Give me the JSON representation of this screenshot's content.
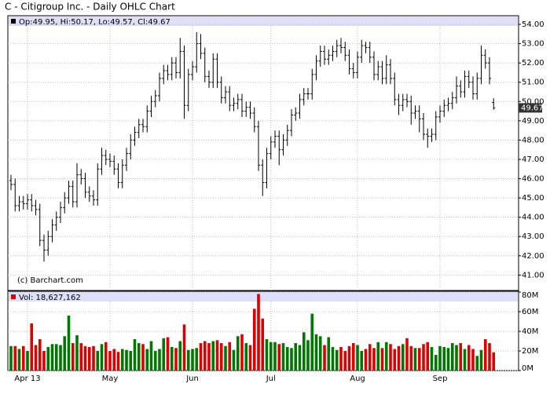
{
  "chart_data": {
    "type": "ohlc",
    "title": "C - Citigroup Inc. - Daily OHLC Chart",
    "price_legend": "Op:49.95, Hi:50.17, Lo:49.57, Cl:49.67",
    "volume_legend": "Vol: 18,627,162",
    "last_price_label": "49.67",
    "copyright": "(c) Barchart.com",
    "categories": [
      null,
      null,
      null,
      null,
      "Apr 13",
      null,
      null,
      null,
      null,
      null,
      null,
      null,
      null,
      null,
      null,
      null,
      null,
      null,
      null,
      null,
      null,
      null,
      null,
      null,
      "May",
      null,
      null,
      null,
      null,
      null,
      null,
      null,
      null,
      null,
      null,
      null,
      null,
      null,
      null,
      null,
      null,
      null,
      null,
      null,
      "Jun",
      null,
      null,
      null,
      null,
      null,
      null,
      null,
      null,
      null,
      null,
      null,
      null,
      null,
      null,
      null,
      null,
      null,
      null,
      "Jul",
      null,
      null,
      null,
      null,
      null,
      null,
      null,
      null,
      null,
      null,
      null,
      null,
      null,
      null,
      null,
      null,
      null,
      null,
      null,
      null,
      "Aug",
      null,
      null,
      null,
      null,
      null,
      null,
      null,
      null,
      null,
      null,
      null,
      null,
      null,
      null,
      null,
      null,
      null,
      null,
      null,
      "Sep",
      null,
      null,
      null,
      null,
      null,
      null,
      null,
      null,
      null,
      null,
      null,
      null,
      null
    ],
    "open": [
      45.9,
      45.7,
      44.6,
      44.8,
      44.7,
      44.9,
      44.6,
      44.4,
      42.8,
      42.3,
      43.0,
      43.6,
      44.0,
      44.5,
      45.0,
      45.6,
      44.8,
      46.2,
      46.0,
      45.3,
      45.1,
      44.9,
      46.5,
      47.2,
      47.0,
      46.9,
      46.5,
      45.8,
      46.7,
      47.3,
      48.0,
      48.4,
      48.8,
      48.7,
      49.5,
      50.0,
      50.3,
      51.2,
      51.6,
      51.4,
      52.0,
      51.5,
      52.6,
      49.8,
      51.4,
      51.8,
      53.0,
      52.5,
      51.3,
      51.0,
      52.2,
      51.0,
      50.2,
      50.5,
      49.8,
      49.9,
      50.1,
      49.5,
      49.7,
      49.4,
      48.7,
      46.7,
      45.8,
      47.3,
      47.9,
      48.2,
      47.5,
      48.0,
      48.5,
      49.3,
      49.4,
      50.1,
      50.4,
      50.4,
      51.4,
      52.1,
      52.6,
      52.2,
      52.4,
      52.6,
      52.9,
      52.8,
      52.4,
      51.7,
      51.5,
      52.3,
      52.9,
      52.8,
      52.3,
      51.4,
      51.8,
      51.2,
      51.9,
      51.2,
      50.1,
      49.8,
      50.1,
      50.0,
      49.4,
      49.5,
      49.1,
      48.3,
      48.2,
      48.3,
      49.2,
      49.5,
      49.8,
      49.9,
      50.2,
      50.8,
      50.5,
      51.3,
      51.0,
      50.4,
      51.2,
      52.4,
      52.0,
      49.95
    ],
    "high": [
      46.2,
      46.0,
      45.1,
      45.1,
      45.2,
      45.2,
      44.9,
      44.7,
      43.1,
      43.3,
      43.9,
      44.3,
      44.8,
      45.3,
      45.9,
      45.9,
      46.8,
      46.5,
      46.3,
      45.6,
      45.4,
      46.8,
      47.6,
      47.5,
      47.3,
      47.2,
      46.8,
      47.0,
      47.6,
      48.3,
      48.7,
      49.1,
      49.1,
      49.8,
      50.3,
      50.6,
      51.5,
      51.9,
      51.9,
      52.3,
      52.3,
      53.3,
      52.9,
      51.7,
      52.1,
      53.6,
      53.5,
      52.8,
      51.6,
      52.5,
      52.5,
      51.3,
      50.8,
      50.8,
      50.2,
      50.4,
      50.4,
      50.0,
      50.0,
      49.7,
      49.0,
      47.0,
      47.6,
      48.2,
      48.5,
      48.5,
      48.3,
      48.8,
      49.6,
      49.7,
      50.4,
      50.7,
      50.7,
      51.7,
      52.4,
      52.9,
      52.9,
      52.7,
      52.9,
      53.2,
      53.3,
      53.1,
      52.7,
      52.0,
      52.6,
      53.2,
      53.1,
      53.1,
      52.6,
      52.1,
      52.1,
      52.4,
      52.2,
      51.5,
      50.4,
      50.4,
      50.4,
      50.3,
      49.8,
      49.8,
      49.4,
      48.6,
      48.6,
      49.5,
      49.8,
      50.1,
      50.2,
      50.5,
      51.3,
      51.1,
      51.6,
      51.6,
      51.3,
      51.5,
      52.9,
      52.7,
      52.3,
      50.17
    ],
    "low": [
      45.4,
      44.3,
      44.3,
      44.4,
      44.4,
      44.3,
      44.1,
      42.5,
      41.7,
      42.0,
      42.7,
      43.3,
      43.7,
      44.2,
      44.7,
      44.5,
      44.5,
      45.7,
      45.0,
      44.8,
      44.6,
      44.6,
      46.2,
      46.7,
      46.6,
      46.2,
      45.5,
      45.5,
      46.4,
      47.0,
      47.7,
      48.1,
      48.4,
      48.4,
      49.2,
      49.7,
      50.0,
      50.9,
      51.1,
      51.1,
      51.2,
      51.2,
      49.1,
      49.5,
      51.1,
      51.5,
      52.2,
      51.0,
      50.7,
      50.7,
      50.7,
      49.9,
      49.9,
      49.5,
      49.5,
      49.6,
      49.2,
      49.2,
      49.1,
      48.4,
      46.4,
      45.1,
      45.5,
      47.0,
      47.6,
      46.7,
      47.2,
      47.7,
      48.2,
      49.0,
      49.1,
      49.8,
      50.1,
      50.1,
      51.1,
      51.8,
      51.9,
      51.9,
      52.1,
      52.3,
      52.5,
      52.1,
      51.4,
      51.2,
      51.2,
      52.0,
      52.5,
      52.0,
      51.1,
      51.1,
      50.9,
      50.9,
      50.9,
      49.8,
      49.3,
      49.5,
      49.7,
      48.8,
      49.1,
      48.4,
      48.0,
      47.6,
      47.9,
      48.0,
      48.9,
      49.2,
      49.5,
      49.6,
      49.9,
      50.2,
      50.2,
      50.7,
      50.1,
      50.1,
      50.9,
      51.7,
      50.9,
      49.57
    ],
    "close": [
      45.7,
      44.6,
      44.8,
      44.7,
      44.9,
      44.6,
      44.4,
      42.8,
      42.3,
      43.0,
      43.6,
      44.0,
      44.5,
      45.0,
      45.6,
      44.8,
      46.2,
      46.0,
      45.3,
      45.1,
      44.9,
      46.5,
      47.2,
      47.0,
      46.9,
      46.5,
      45.8,
      46.7,
      47.3,
      48.0,
      48.4,
      48.8,
      48.7,
      49.5,
      50.0,
      50.3,
      51.2,
      51.6,
      51.4,
      52.0,
      51.5,
      52.6,
      49.8,
      51.4,
      51.8,
      53.0,
      52.5,
      51.3,
      51.0,
      52.2,
      51.0,
      50.2,
      50.5,
      49.8,
      49.9,
      50.1,
      49.5,
      49.7,
      49.4,
      48.7,
      46.7,
      45.8,
      47.3,
      47.9,
      48.2,
      47.5,
      48.0,
      48.5,
      49.3,
      49.4,
      50.1,
      50.4,
      50.4,
      51.4,
      52.1,
      52.6,
      52.2,
      52.4,
      52.6,
      52.9,
      52.8,
      52.4,
      51.7,
      51.5,
      52.3,
      52.9,
      52.8,
      52.3,
      51.4,
      51.8,
      51.2,
      51.9,
      51.2,
      50.1,
      49.8,
      50.1,
      50.0,
      49.4,
      49.5,
      49.1,
      48.3,
      48.2,
      48.3,
      49.2,
      49.5,
      49.8,
      49.9,
      50.2,
      50.8,
      50.5,
      51.3,
      51.0,
      50.4,
      51.2,
      52.4,
      52.0,
      51.2,
      49.67
    ],
    "volume": [
      25000000,
      25000000,
      22000000,
      25000000,
      20000000,
      48000000,
      26000000,
      32000000,
      20000000,
      24000000,
      27000000,
      27000000,
      26000000,
      35000000,
      56000000,
      28000000,
      36000000,
      28000000,
      25000000,
      24000000,
      25000000,
      20000000,
      27000000,
      29000000,
      20000000,
      22000000,
      19000000,
      22000000,
      21000000,
      20000000,
      32000000,
      28000000,
      27000000,
      22000000,
      30000000,
      20000000,
      22000000,
      33000000,
      34000000,
      24000000,
      23000000,
      30000000,
      47000000,
      21000000,
      22000000,
      23000000,
      28000000,
      30000000,
      28000000,
      30000000,
      31000000,
      28000000,
      25000000,
      29000000,
      21000000,
      35000000,
      37000000,
      28000000,
      26000000,
      63000000,
      78000000,
      53000000,
      32000000,
      29000000,
      29000000,
      27000000,
      28000000,
      24000000,
      23000000,
      28000000,
      26000000,
      39000000,
      31000000,
      58000000,
      37000000,
      35000000,
      26000000,
      34000000,
      24000000,
      21000000,
      24000000,
      20000000,
      25000000,
      28000000,
      26000000,
      20000000,
      22000000,
      27000000,
      23000000,
      29000000,
      23000000,
      29000000,
      27000000,
      22000000,
      25000000,
      27000000,
      33000000,
      25000000,
      23000000,
      23000000,
      27000000,
      29000000,
      24000000,
      16000000,
      25000000,
      24000000,
      23000000,
      28000000,
      26000000,
      28000000,
      22000000,
      26000000,
      22000000,
      15000000,
      21000000,
      32000000,
      28000000,
      18627162
    ],
    "ylim": [
      40.2,
      54.45
    ],
    "yticks": [
      {
        "value": 41,
        "label": "41.00"
      },
      {
        "value": 42,
        "label": "42.00"
      },
      {
        "value": 43,
        "label": "43.00"
      },
      {
        "value": 44,
        "label": "44.00"
      },
      {
        "value": 45,
        "label": "45.00"
      },
      {
        "value": 46,
        "label": "46.00"
      },
      {
        "value": 47,
        "label": "47.00"
      },
      {
        "value": 48,
        "label": "48.00"
      },
      {
        "value": 49,
        "label": "49.00"
      },
      {
        "value": 50,
        "label": "50.00"
      },
      {
        "value": 51,
        "label": "51.00"
      },
      {
        "value": 52,
        "label": "52.00"
      },
      {
        "value": 53,
        "label": "53.00"
      },
      {
        "value": 54,
        "label": "54.00"
      }
    ],
    "y2lim": [
      0,
      80000000
    ],
    "y2ticks": [
      {
        "value": 0,
        "label": "0M"
      },
      {
        "value": 20000000,
        "label": "20M"
      },
      {
        "value": 40000000,
        "label": "40M"
      },
      {
        "value": 60000000,
        "label": "60M"
      },
      {
        "value": 80000000,
        "label": "80M"
      }
    ],
    "grid": true,
    "color": "#000000",
    "up_color": "#007700",
    "down_color": "#dd0000"
  }
}
